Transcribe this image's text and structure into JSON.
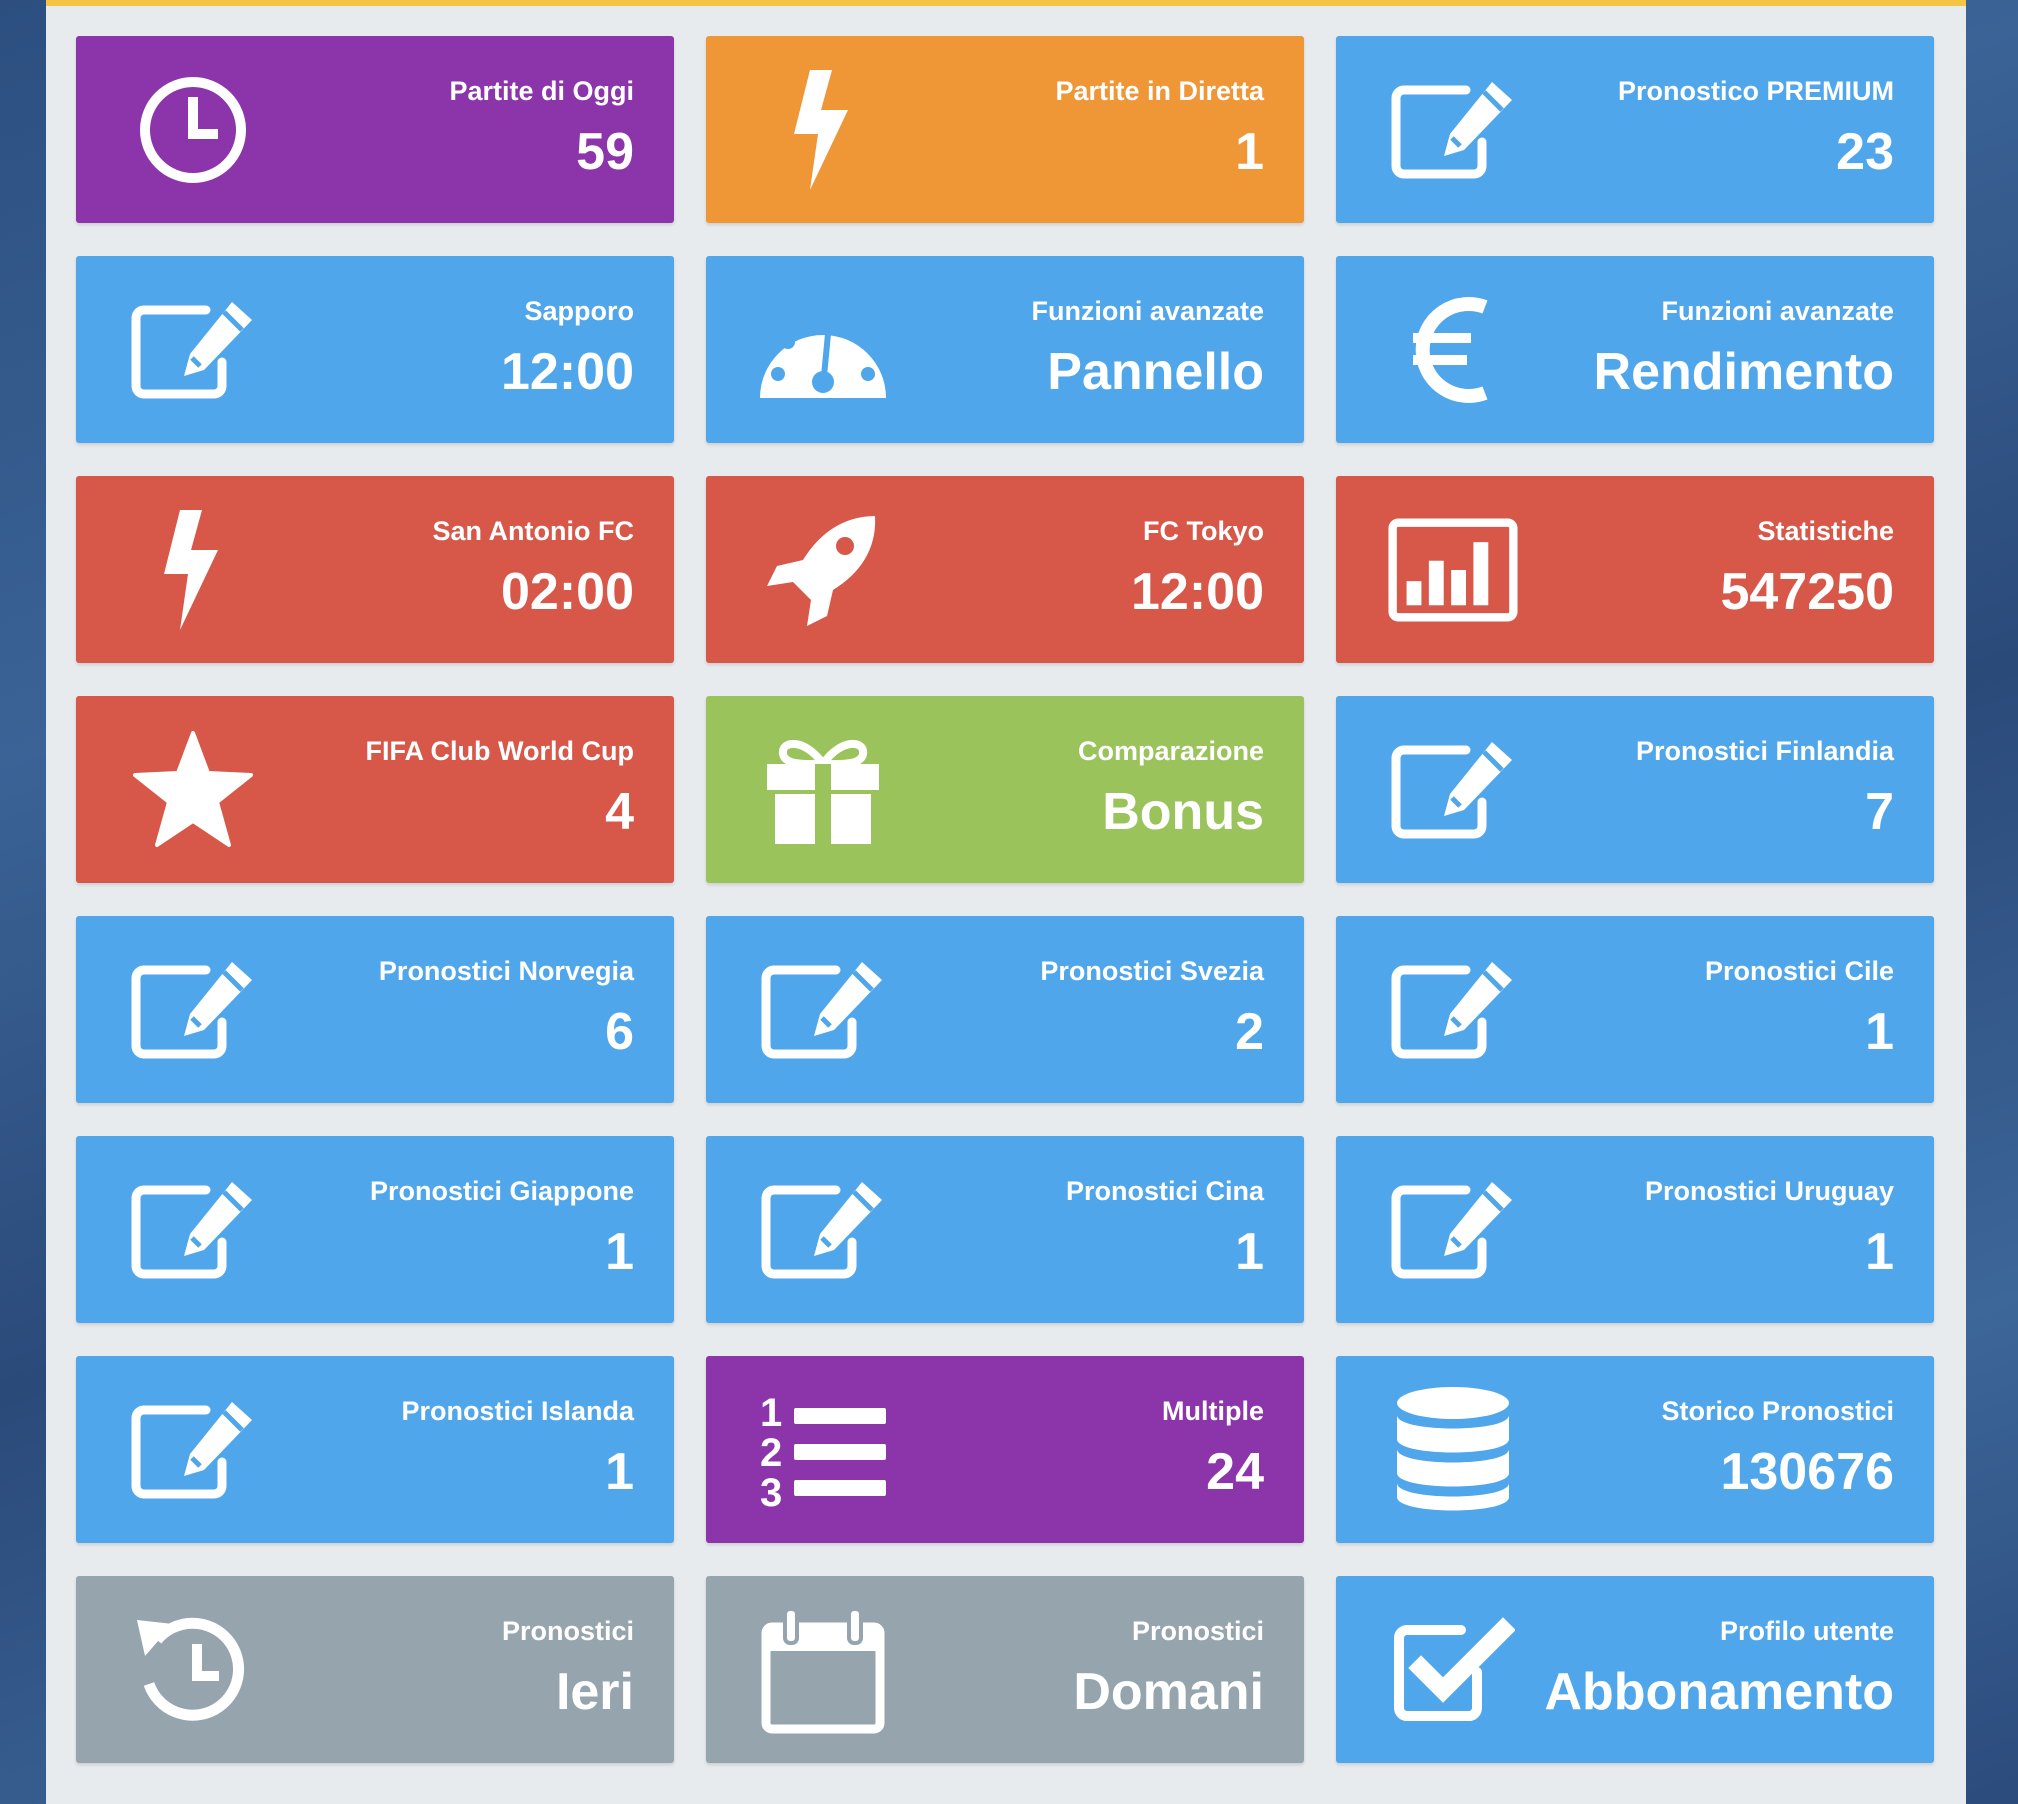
{
  "colors": {
    "purple": "#8c34aa",
    "orange": "#ef9637",
    "blue": "#50a6eb",
    "red": "#d75749",
    "green": "#9bc35c",
    "gray": "#96a5ad",
    "top_bar": "#f4c542"
  },
  "tiles": [
    {
      "label": "Partite di Oggi",
      "value": "59",
      "color": "purple",
      "icon": "clock-icon"
    },
    {
      "label": "Partite in Diretta",
      "value": "1",
      "color": "orange",
      "icon": "bolt-icon"
    },
    {
      "label": "Pronostico PREMIUM",
      "value": "23",
      "color": "blue",
      "icon": "edit-icon"
    },
    {
      "label": "Sapporo",
      "value": "12:00",
      "color": "blue",
      "icon": "edit-icon"
    },
    {
      "label": "Funzioni avanzate",
      "value": "Pannello",
      "color": "blue",
      "icon": "dashboard-icon"
    },
    {
      "label": "Funzioni avanzate",
      "value": "Rendimento",
      "color": "blue",
      "icon": "euro-icon"
    },
    {
      "label": "San Antonio FC",
      "value": "02:00",
      "color": "red",
      "icon": "bolt-icon"
    },
    {
      "label": "FC Tokyo",
      "value": "12:00",
      "color": "red",
      "icon": "rocket-icon"
    },
    {
      "label": "Statistiche",
      "value": "547250",
      "color": "red",
      "icon": "bar-chart-icon"
    },
    {
      "label": "FIFA Club World Cup",
      "value": "4",
      "color": "red",
      "icon": "star-icon"
    },
    {
      "label": "Comparazione",
      "value": "Bonus",
      "color": "green",
      "icon": "gift-icon"
    },
    {
      "label": "Pronostici Finlandia",
      "value": "7",
      "color": "blue",
      "icon": "edit-icon"
    },
    {
      "label": "Pronostici Norvegia",
      "value": "6",
      "color": "blue",
      "icon": "edit-icon"
    },
    {
      "label": "Pronostici Svezia",
      "value": "2",
      "color": "blue",
      "icon": "edit-icon"
    },
    {
      "label": "Pronostici Cile",
      "value": "1",
      "color": "blue",
      "icon": "edit-icon"
    },
    {
      "label": "Pronostici Giappone",
      "value": "1",
      "color": "blue",
      "icon": "edit-icon"
    },
    {
      "label": "Pronostici Cina",
      "value": "1",
      "color": "blue",
      "icon": "edit-icon"
    },
    {
      "label": "Pronostici Uruguay",
      "value": "1",
      "color": "blue",
      "icon": "edit-icon"
    },
    {
      "label": "Pronostici Islanda",
      "value": "1",
      "color": "blue",
      "icon": "edit-icon"
    },
    {
      "label": "Multiple",
      "value": "24",
      "color": "purple",
      "icon": "numbered-list-icon"
    },
    {
      "label": "Storico Pronostici",
      "value": "130676",
      "color": "blue",
      "icon": "database-icon"
    },
    {
      "label": "Pronostici",
      "value": "Ieri",
      "color": "gray",
      "icon": "history-icon"
    },
    {
      "label": "Pronostici",
      "value": "Domani",
      "color": "gray",
      "icon": "calendar-icon"
    },
    {
      "label": "Profilo utente",
      "value": "Abbonamento",
      "color": "blue",
      "icon": "checkbox-icon"
    }
  ]
}
